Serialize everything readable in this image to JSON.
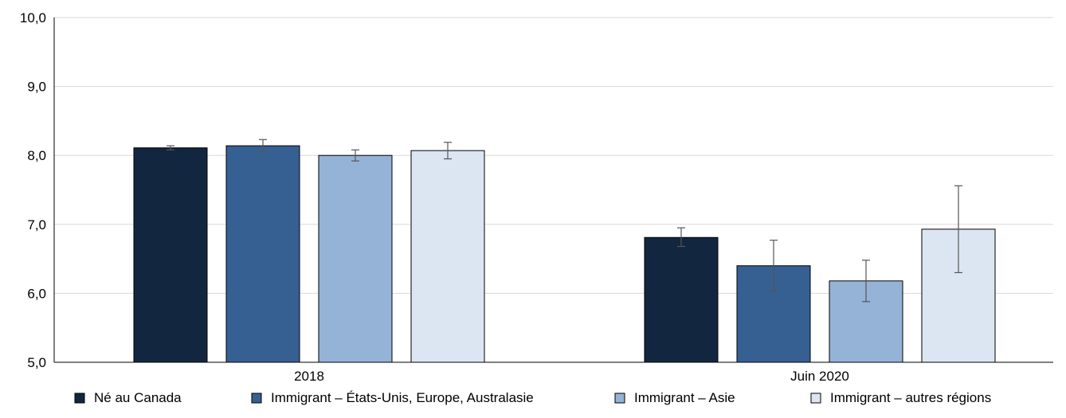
{
  "chart_data": {
    "type": "bar",
    "categories": [
      "2018",
      "Juin 2020"
    ],
    "series": [
      {
        "name": "Né au Canada",
        "color": "#13263f",
        "values": [
          8.11,
          6.81
        ],
        "error_low": [
          8.08,
          6.68
        ],
        "error_high": [
          8.14,
          6.95
        ]
      },
      {
        "name": "Immigrant – États-Unis, Europe, Australasie",
        "color": "#376092",
        "values": [
          8.14,
          6.4
        ],
        "error_low": [
          8.05,
          6.03
        ],
        "error_high": [
          8.23,
          6.77
        ]
      },
      {
        "name": "Immigrant – Asie",
        "color": "#95b3d7",
        "values": [
          8.0,
          6.18
        ],
        "error_low": [
          7.92,
          5.88
        ],
        "error_high": [
          8.08,
          6.48
        ]
      },
      {
        "name": "Immigrant – autres régions",
        "color": "#dce6f2",
        "values": [
          8.07,
          6.93
        ],
        "error_low": [
          7.95,
          6.3
        ],
        "error_high": [
          8.19,
          7.56
        ]
      }
    ],
    "y_ticks": [
      "5,0",
      "6,0",
      "7,0",
      "8,0",
      "9,0",
      "10,0"
    ],
    "ylim": [
      5,
      10
    ],
    "grid": true,
    "legend_position": "bottom"
  }
}
